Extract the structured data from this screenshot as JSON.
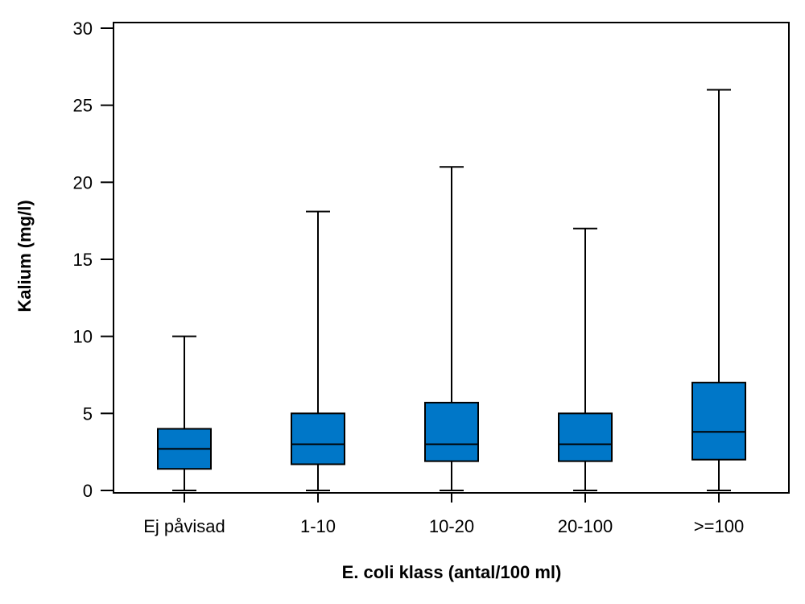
{
  "chart_data": {
    "type": "boxplot",
    "title": "",
    "xlabel": "E. coli klass (antal/100 ml)",
    "ylabel": "Kalium (mg/l)",
    "ylim": [
      0,
      30
    ],
    "yticks": [
      0,
      5,
      10,
      15,
      20,
      25,
      30
    ],
    "grid": false,
    "categories": [
      "Ej påvisad",
      "1-10",
      "10-20",
      "20-100",
      ">=100"
    ],
    "boxes": [
      {
        "min": 0,
        "q1": 1.4,
        "median": 2.7,
        "q3": 4.0,
        "max": 10
      },
      {
        "min": 0,
        "q1": 1.7,
        "median": 3.0,
        "q3": 5.0,
        "max": 18.1
      },
      {
        "min": 0,
        "q1": 1.9,
        "median": 3.0,
        "q3": 5.7,
        "max": 21
      },
      {
        "min": 0,
        "q1": 1.9,
        "median": 3.0,
        "q3": 5.0,
        "max": 17
      },
      {
        "min": 0,
        "q1": 2.0,
        "median": 3.8,
        "q3": 7.0,
        "max": 26
      }
    ],
    "colors": {
      "box_fill": "#0077C8",
      "line": "#000000"
    }
  }
}
